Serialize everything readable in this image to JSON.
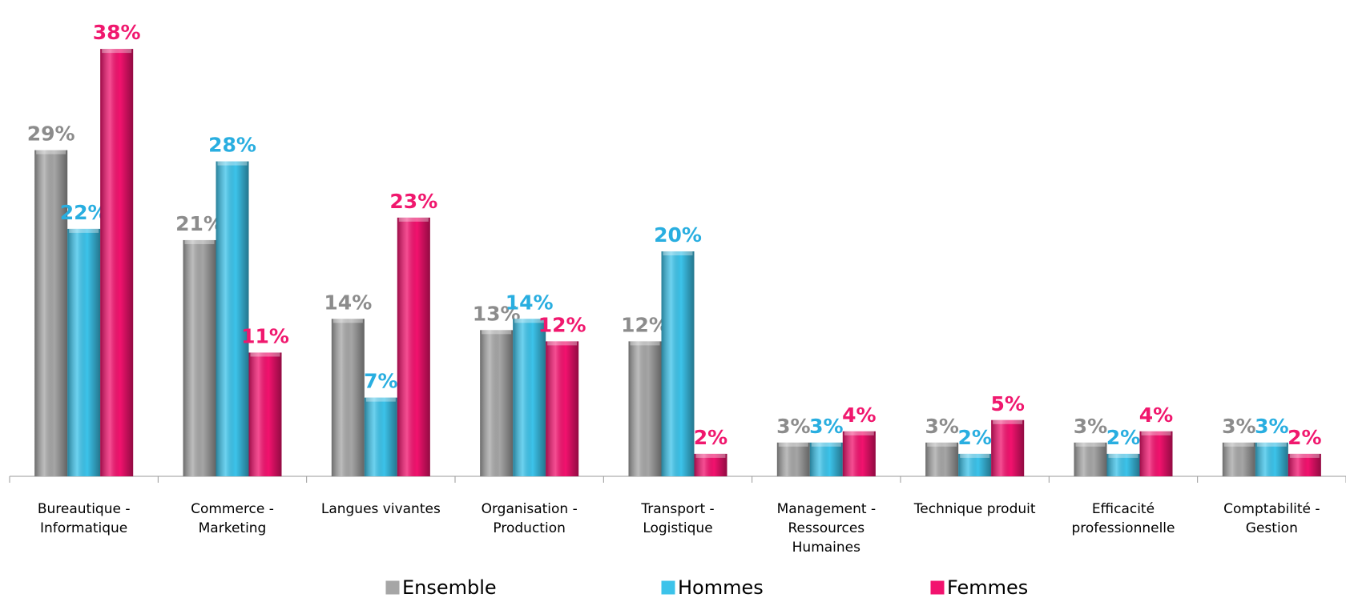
{
  "chart_data": {
    "type": "bar",
    "categories": [
      "Bureautique - Informatique",
      "Commerce - Marketing",
      "Langues vivantes",
      "Organisation - Production",
      "Transport - Logistique",
      "Management - Ressources Humaines",
      "Technique produit",
      "Efficacité professionnelle",
      "Comptabilité - Gestion"
    ],
    "series": [
      {
        "name": "Ensemble",
        "color": "#a6a6a6",
        "label_color": "#8c8c8c",
        "values": [
          29,
          21,
          14,
          13,
          12,
          3,
          3,
          3,
          3
        ],
        "value_labels": [
          "29%",
          "21%",
          "14%",
          "13%",
          "12%",
          "3%",
          "3%",
          "3%",
          "3%"
        ]
      },
      {
        "name": "Hommes",
        "color": "#3cc3ea",
        "label_color": "#29aee0",
        "values": [
          22,
          28,
          7,
          14,
          20,
          3,
          2,
          2,
          3
        ],
        "value_labels": [
          "22%",
          "28%",
          "7%",
          "14%",
          "20%",
          "3%",
          "2%",
          "2%",
          "3%"
        ]
      },
      {
        "name": "Femmes",
        "color": "#f2126e",
        "label_color": "#f0186e",
        "values": [
          38,
          11,
          23,
          12,
          2,
          4,
          5,
          4,
          2
        ],
        "value_labels": [
          "38%",
          "11%",
          "23%",
          "12%",
          "2%",
          "4%",
          "5%",
          "4%",
          "2%"
        ]
      }
    ],
    "ylim": [
      0,
      40
    ],
    "legend": "bottom"
  }
}
